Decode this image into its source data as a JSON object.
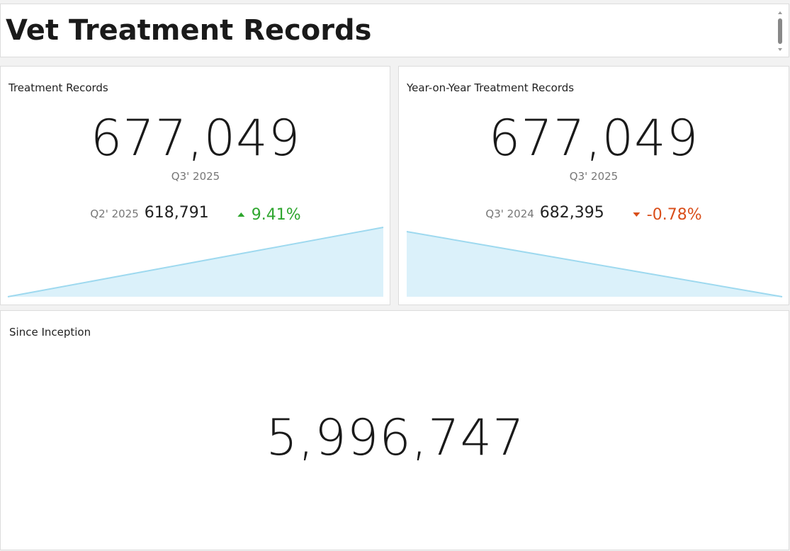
{
  "header": {
    "title": "Vet Treatment Records"
  },
  "cards": [
    {
      "title": "Treatment Records",
      "value": "677,049",
      "period": "Q3' 2025",
      "comparison_period": "Q2' 2025",
      "comparison_value": "618,791",
      "change": "9.41%",
      "trend": "up"
    },
    {
      "title": "Year-on-Year Treatment Records",
      "value": "677,049",
      "period": "Q3' 2025",
      "comparison_period": "Q3' 2024",
      "comparison_value": "682,395",
      "change": "-0.78%",
      "trend": "down"
    },
    {
      "title": "Since Inception",
      "value": "5,996,747"
    }
  ]
}
